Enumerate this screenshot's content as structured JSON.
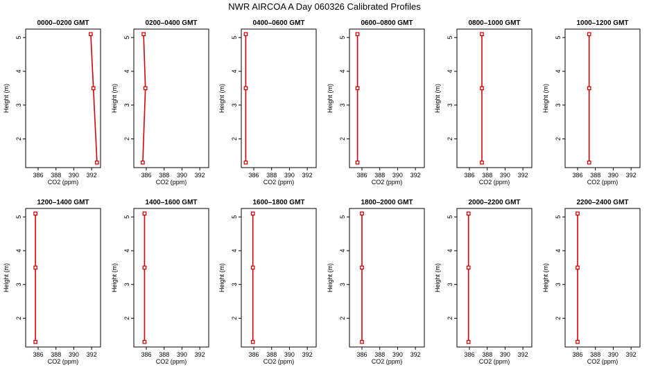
{
  "page_title": "NWR AIRCOA A  Day 060326  Calibrated Profiles",
  "chart_data": {
    "type": "line",
    "xlabel": "CO2 (ppm)",
    "ylabel": "Height (m)",
    "xlim": [
      384.6,
      393
    ],
    "ylim": [
      1.15,
      5.25
    ],
    "x_ticks": [
      386,
      388,
      390,
      392
    ],
    "y_ticks": [
      2,
      3,
      4,
      5
    ],
    "grid": false,
    "line_color": "#dd0000",
    "panels": [
      {
        "title": "0000–0200 GMT",
        "heights": [
          1.3,
          3.5,
          5.1
        ],
        "values": [
          392.6,
          392.2,
          391.9
        ]
      },
      {
        "title": "0200–0400 GMT",
        "heights": [
          1.3,
          3.5,
          5.1
        ],
        "values": [
          385.6,
          385.9,
          385.7
        ]
      },
      {
        "title": "0400–0600 GMT",
        "heights": [
          1.3,
          3.5,
          5.1
        ],
        "values": [
          385.1,
          385.1,
          385.1
        ]
      },
      {
        "title": "0600–0800 GMT",
        "heights": [
          1.3,
          3.5,
          5.1
        ],
        "values": [
          385.5,
          385.5,
          385.5
        ]
      },
      {
        "title": "0800–1000 GMT",
        "heights": [
          1.3,
          3.5,
          5.1
        ],
        "values": [
          387.4,
          387.4,
          387.4
        ]
      },
      {
        "title": "1000–1200 GMT",
        "heights": [
          1.3,
          3.5,
          5.1
        ],
        "values": [
          387.3,
          387.3,
          387.3
        ]
      },
      {
        "title": "1200–1400 GMT",
        "heights": [
          1.3,
          3.5,
          5.1
        ],
        "values": [
          385.7,
          385.7,
          385.7
        ]
      },
      {
        "title": "1400–1600 GMT",
        "heights": [
          1.3,
          3.5,
          5.1
        ],
        "values": [
          385.8,
          385.8,
          385.8
        ]
      },
      {
        "title": "1600–1800 GMT",
        "heights": [
          1.3,
          3.5,
          5.1
        ],
        "values": [
          385.9,
          385.9,
          385.9
        ]
      },
      {
        "title": "1800–2000 GMT",
        "heights": [
          1.3,
          3.5,
          5.1
        ],
        "values": [
          386.0,
          386.0,
          386.0
        ]
      },
      {
        "title": "2000–2200 GMT",
        "heights": [
          1.3,
          3.5,
          5.1
        ],
        "values": [
          385.9,
          385.9,
          385.9
        ]
      },
      {
        "title": "2200–2400 GMT",
        "heights": [
          1.3,
          3.5,
          5.1
        ],
        "values": [
          386.0,
          386.0,
          386.0
        ]
      }
    ]
  }
}
